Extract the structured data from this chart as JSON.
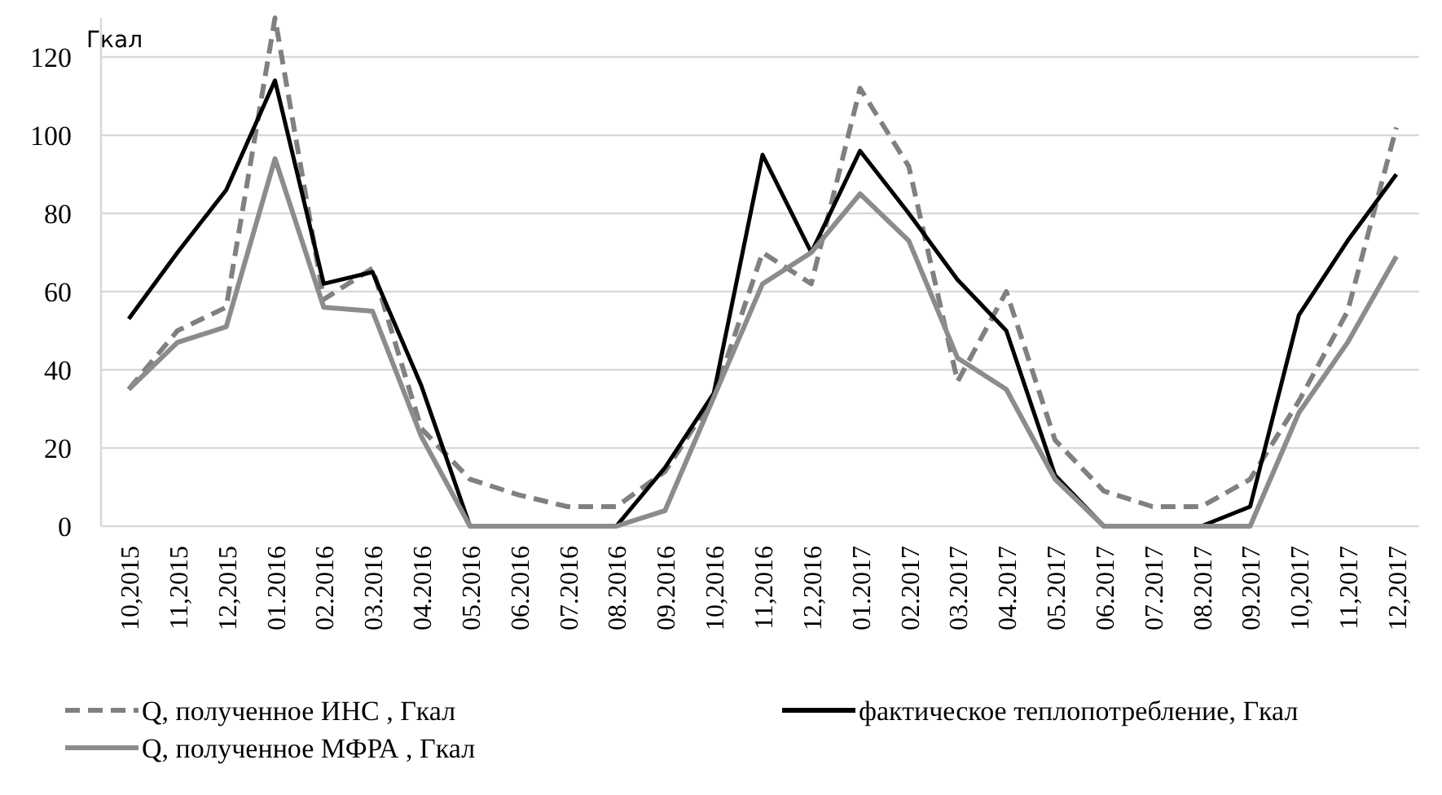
{
  "chart_data": {
    "type": "line",
    "ylabel": "Гкал",
    "categories": [
      "10,2015",
      "11,2015",
      "12,2015",
      "01.2016",
      "02.2016",
      "03.2016",
      "04.2016",
      "05.2016",
      "06.2016",
      "07.2016",
      "08.2016",
      "09.2016",
      "10,2016",
      "11,2016",
      "12,2016",
      "01.2017",
      "02.2017",
      "03.2017",
      "04.2017",
      "05.2017",
      "06.2017",
      "07.2017",
      "08.2017",
      "09.2017",
      "10,2017",
      "11,2017",
      "12,2017"
    ],
    "series": [
      {
        "name": "Q, полученное ИНС , Гкал",
        "color": "#808080",
        "line_style": "dashed",
        "values": [
          35,
          50,
          56,
          130,
          58,
          66,
          25,
          12,
          8,
          5,
          5,
          14,
          33,
          70,
          62,
          112,
          92,
          37,
          60,
          22,
          9,
          5,
          5,
          12,
          32,
          55,
          102
        ]
      },
      {
        "name": "фактическое теплопотребление, Гкал",
        "color": "#000000",
        "line_style": "solid",
        "values": [
          53,
          70,
          86,
          114,
          62,
          65,
          36,
          0,
          0,
          0,
          0,
          15,
          34,
          95,
          70,
          96,
          80,
          63,
          50,
          13,
          0,
          0,
          0,
          5,
          54,
          73,
          90
        ]
      },
      {
        "name": "Q, полученное МФРА , Гкал",
        "color": "#8c8c8c",
        "line_style": "solid",
        "values": [
          35,
          47,
          51,
          94,
          56,
          55,
          23,
          0,
          0,
          0,
          0,
          4,
          33,
          62,
          70,
          85,
          73,
          43,
          35,
          12,
          0,
          0,
          0,
          0,
          29,
          47,
          69
        ]
      }
    ],
    "ylim": [
      0,
      130
    ],
    "yticks": [
      0,
      20,
      40,
      60,
      80,
      100,
      120
    ],
    "grid": "y",
    "legend": "bottom"
  }
}
